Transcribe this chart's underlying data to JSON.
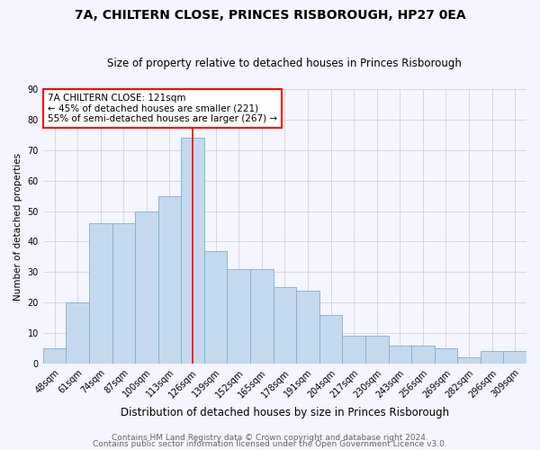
{
  "title": "7A, CHILTERN CLOSE, PRINCES RISBOROUGH, HP27 0EA",
  "subtitle": "Size of property relative to detached houses in Princes Risborough",
  "xlabel": "Distribution of detached houses by size in Princes Risborough",
  "ylabel": "Number of detached properties",
  "categories": [
    "48sqm",
    "61sqm",
    "74sqm",
    "87sqm",
    "100sqm",
    "113sqm",
    "126sqm",
    "139sqm",
    "152sqm",
    "165sqm",
    "178sqm",
    "191sqm",
    "204sqm",
    "217sqm",
    "230sqm",
    "243sqm",
    "256sqm",
    "269sqm",
    "282sqm",
    "296sqm",
    "309sqm"
  ],
  "values": [
    5,
    20,
    46,
    46,
    50,
    55,
    74,
    37,
    31,
    31,
    25,
    24,
    16,
    9,
    9,
    6,
    6,
    5,
    2,
    4,
    4
  ],
  "bar_color": "#c5d9ee",
  "bar_edge_color": "#7aaed6",
  "red_line_x": 6,
  "annotation_line1": "7A CHILTERN CLOSE: 121sqm",
  "annotation_line2": "← 45% of detached houses are smaller (221)",
  "annotation_line3": "55% of semi-detached houses are larger (267) →",
  "annotation_box_color": "white",
  "annotation_box_edge_color": "red",
  "red_line_color": "red",
  "ylim": [
    0,
    90
  ],
  "yticks": [
    0,
    10,
    20,
    30,
    40,
    50,
    60,
    70,
    80,
    90
  ],
  "footer1": "Contains HM Land Registry data © Crown copyright and database right 2024.",
  "footer2": "Contains public sector information licensed under the Open Government Licence v3.0.",
  "title_fontsize": 10,
  "subtitle_fontsize": 8.5,
  "xlabel_fontsize": 8.5,
  "ylabel_fontsize": 7.5,
  "annotation_fontsize": 7.5,
  "tick_fontsize": 7,
  "footer_fontsize": 6.5,
  "background_color": "#f5f5ff"
}
